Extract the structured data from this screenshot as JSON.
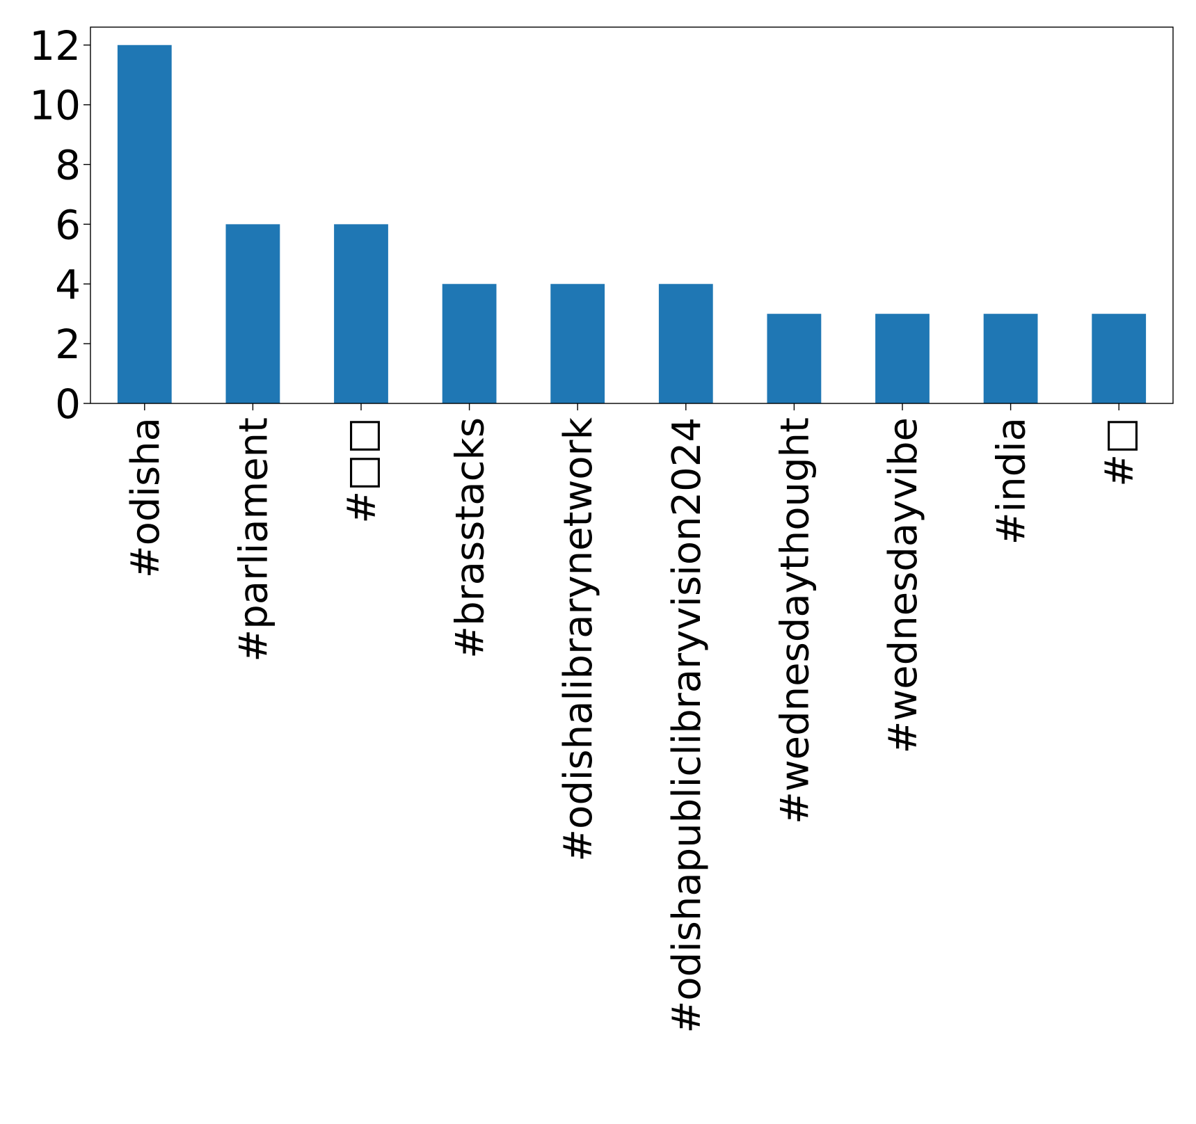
{
  "chart_data": {
    "type": "bar",
    "title": "",
    "xlabel": "",
    "ylabel": "",
    "categories": [
      "#odisha",
      "#parliament",
      "#□□",
      "#brasstacks",
      "#odishalibrarynetwork",
      "#odishapubliclibraryvision2024",
      "#wednesdaythought",
      "#wednesdayvibe",
      "#india",
      "#□"
    ],
    "values": [
      12,
      6,
      6,
      4,
      4,
      4,
      3,
      3,
      3,
      3
    ],
    "ylim": [
      0,
      12.6
    ],
    "yticks": [
      0,
      2,
      4,
      6,
      8,
      10,
      12
    ],
    "ytick_labels": [
      "0",
      "2",
      "4",
      "6",
      "8",
      "10",
      "12"
    ],
    "x_label_rotation": "vertical",
    "grid": false,
    "legend": "none",
    "bar_color": "#1f77b4"
  }
}
